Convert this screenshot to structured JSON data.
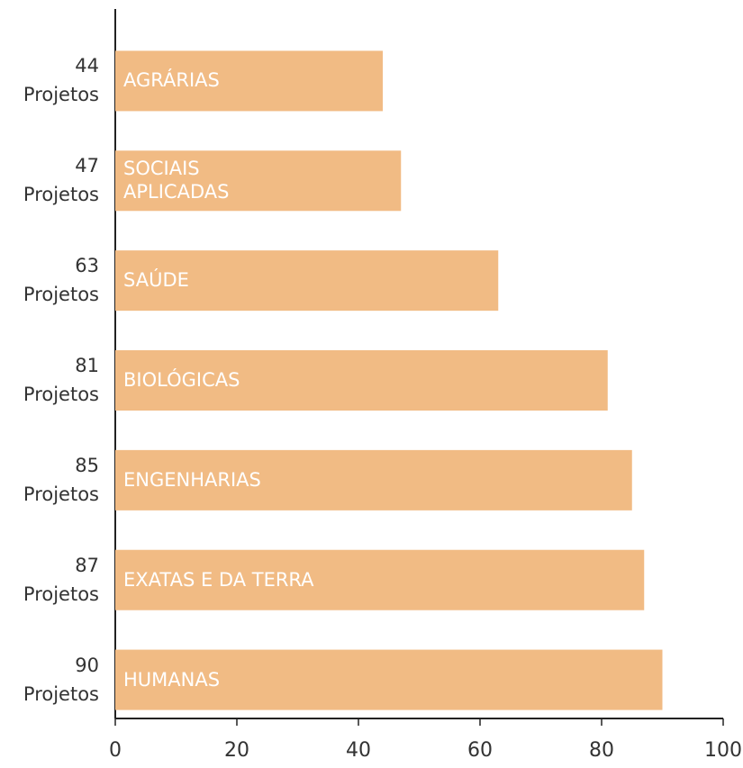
{
  "chart_data": {
    "type": "barh",
    "categories": [
      "AGRÁRIAS",
      "SOCIAIS\nAPLICADAS",
      "SAÚDE",
      "BIOLÓGICAS",
      "ENGENHARIAS",
      "EXATAS E DA TERRA",
      "HUMANAS"
    ],
    "values": [
      44,
      47,
      63,
      81,
      85,
      87,
      90
    ],
    "value_labels": [
      "44\nProjetos",
      "47\nProjetos",
      "63\nProjetos",
      "81\nProjetos",
      "85\nProjetos",
      "87\nProjetos",
      "90\nProjetos"
    ],
    "color": "#f1bb84",
    "xlim": [
      0,
      100
    ],
    "xticks": [
      0,
      20,
      40,
      60,
      80,
      100
    ]
  }
}
